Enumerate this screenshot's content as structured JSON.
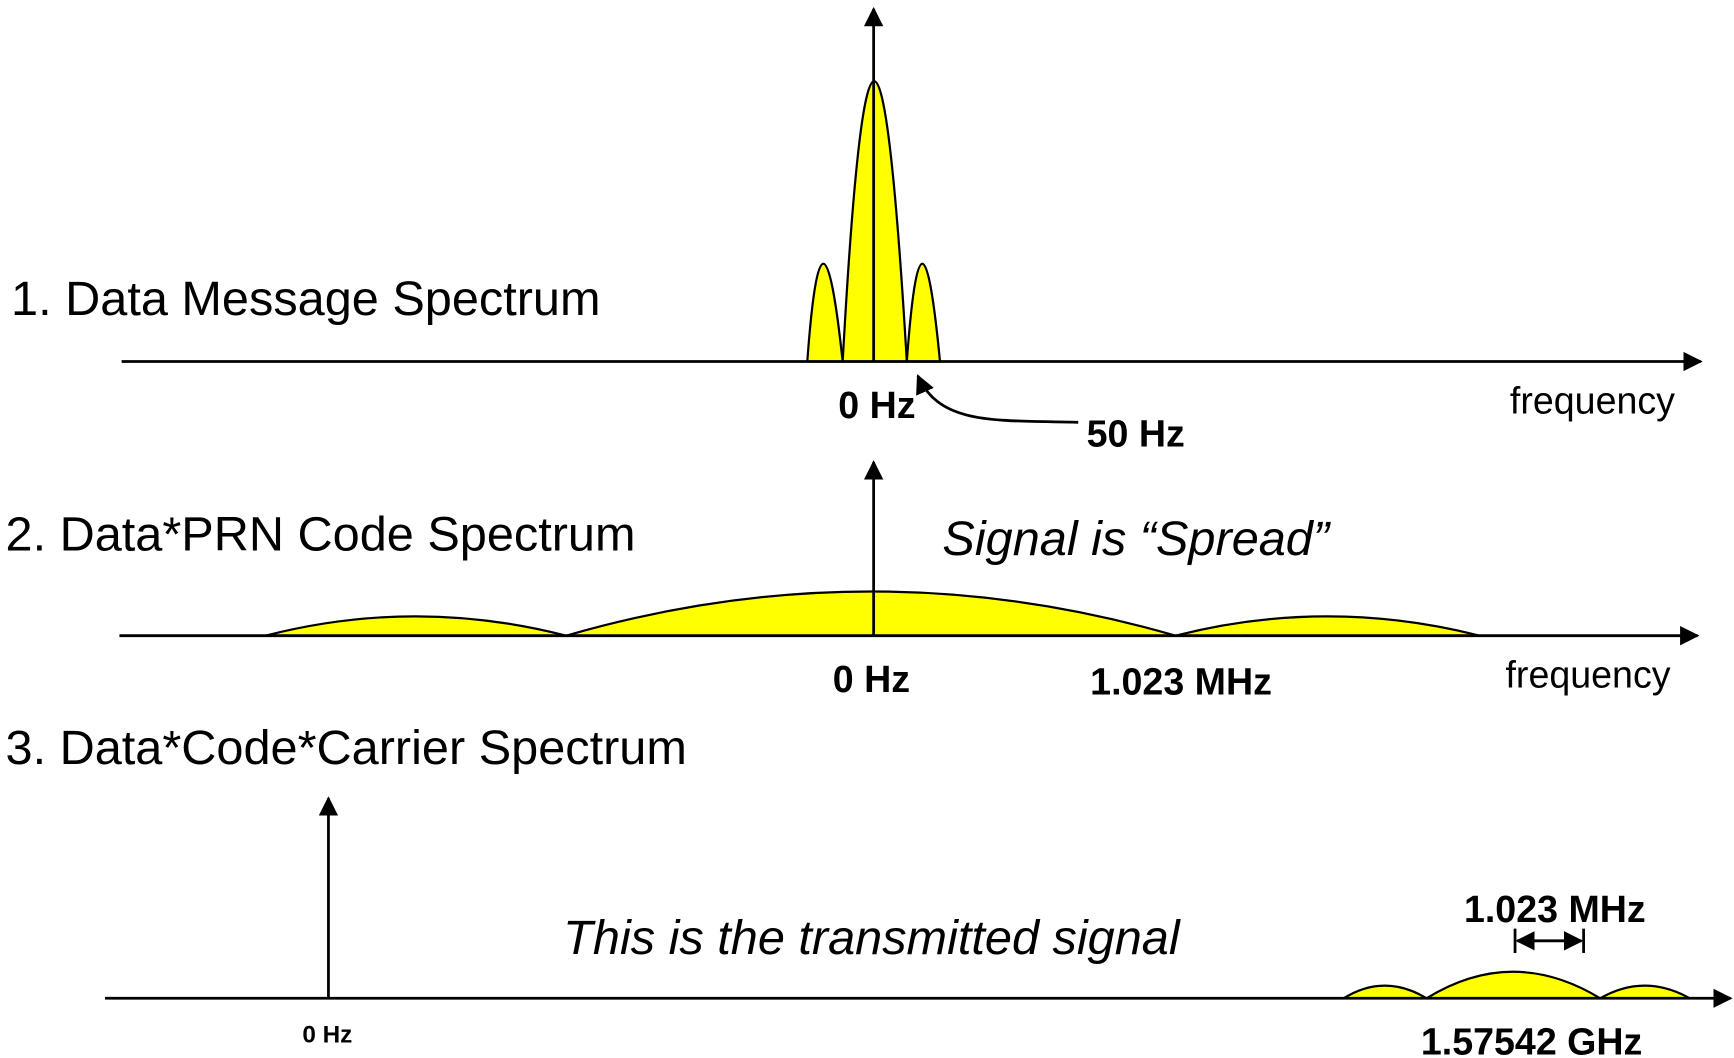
{
  "panels": [
    {
      "title": "1. Data Message Spectrum",
      "labels": [
        "0 Hz",
        "50 Hz",
        "frequency"
      ]
    },
    {
      "title": "2. Data*PRN Code Spectrum",
      "note": "Signal is “Spread”",
      "labels": [
        "0 Hz",
        "1.023 MHz",
        "frequency"
      ]
    },
    {
      "title": "3. Data*Code*Carrier Spectrum",
      "note": "This is the transmitted signal",
      "labels": [
        "0 Hz",
        "1.023 MHz",
        "1.57542 GHz"
      ]
    }
  ]
}
